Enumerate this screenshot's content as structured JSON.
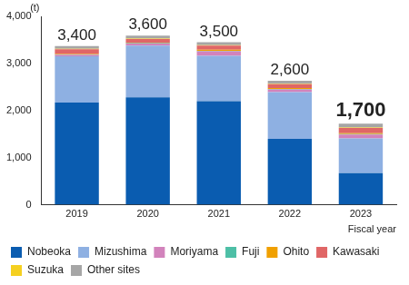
{
  "chart_data": {
    "type": "bar",
    "stacked": true,
    "categories": [
      "2019",
      "2020",
      "2021",
      "2022",
      "2023"
    ],
    "series": [
      {
        "name": "Nobeoka",
        "color": "#0a5cb0",
        "values": [
          2170,
          2280,
          2200,
          1400,
          670
        ]
      },
      {
        "name": "Mizushima",
        "color": "#8eb0e2",
        "values": [
          980,
          1100,
          960,
          990,
          740
        ]
      },
      {
        "name": "Moriyama",
        "color": "#d283bc",
        "values": [
          30,
          40,
          100,
          60,
          80
        ]
      },
      {
        "name": "Fuji",
        "color": "#4dbfa6",
        "values": [
          10,
          10,
          10,
          10,
          10
        ]
      },
      {
        "name": "Ohito",
        "color": "#f0a000",
        "values": [
          10,
          10,
          20,
          20,
          20
        ]
      },
      {
        "name": "Kawasaki",
        "color": "#e06666",
        "values": [
          100,
          80,
          90,
          80,
          110
        ]
      },
      {
        "name": "Suzuka",
        "color": "#f5d020",
        "values": [
          10,
          10,
          10,
          10,
          10
        ]
      },
      {
        "name": "Other sites",
        "color": "#a6a6a6",
        "values": [
          60,
          60,
          60,
          60,
          80
        ]
      }
    ],
    "totals": [
      3400,
      3600,
      3500,
      2600,
      1700
    ],
    "total_labels": [
      "3,400",
      "3,600",
      "3,500",
      "2,600",
      "1,700"
    ],
    "y_label": "(t)",
    "x_label": "Fiscal year",
    "ylim": [
      0,
      4000
    ],
    "yticks": [
      0,
      {
        "value": 1000,
        "label": "1,000"
      },
      {
        "value": 2000,
        "label": "2,000"
      },
      {
        "value": 3000,
        "label": "3,000"
      },
      {
        "value": 4000,
        "label": "4,000"
      }
    ],
    "grid": false,
    "legend": "bottom"
  }
}
